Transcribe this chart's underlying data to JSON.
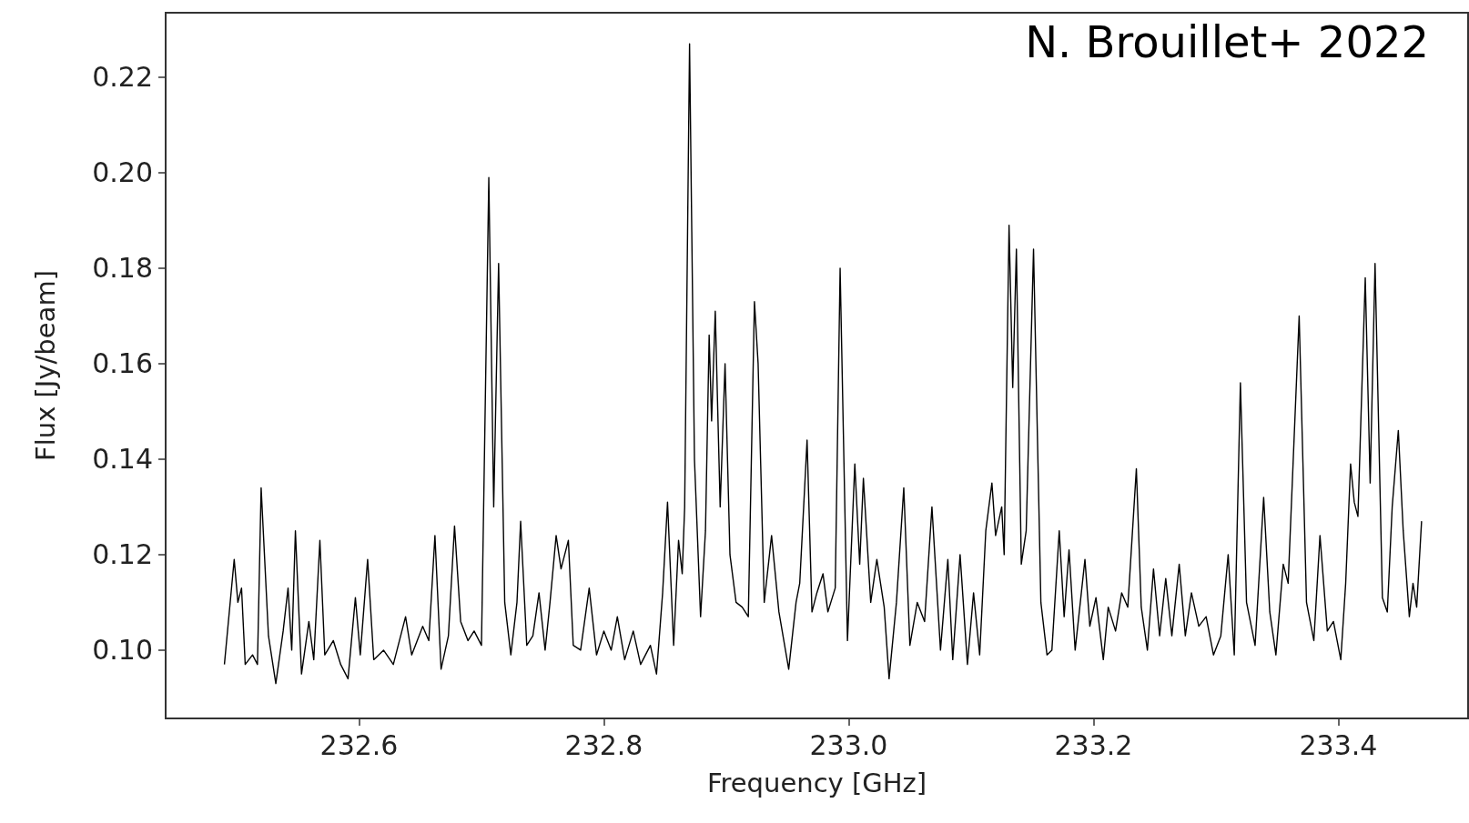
{
  "chart_data": {
    "type": "line",
    "xlabel": "Frequency [GHz]",
    "ylabel": "Flux [Jy/beam]",
    "annotations": [
      "N. Brouillet+ 2022"
    ],
    "xlim": [
      232.442,
      233.506
    ],
    "ylim": [
      0.0857,
      0.2335
    ],
    "xticks": [
      232.6,
      232.8,
      {
        "value": 233,
        "label": "233.0"
      },
      233.2,
      233.4
    ],
    "yticks": [
      {
        "value": 0.1,
        "label": "0.10"
      },
      0.12,
      0.14,
      0.16,
      0.18,
      {
        "value": 0.2,
        "label": "0.20"
      },
      0.22
    ],
    "marker": "none",
    "line_style": "solid",
    "series": [
      {
        "color": "#000000",
        "x": [
          232.49,
          232.498,
          232.501,
          232.504,
          232.507,
          232.513,
          232.517,
          232.52,
          232.526,
          232.532,
          232.538,
          232.542,
          232.545,
          232.548,
          232.553,
          232.559,
          232.563,
          232.568,
          232.572,
          232.579,
          232.585,
          232.591,
          232.597,
          232.601,
          232.607,
          232.612,
          232.62,
          232.628,
          232.638,
          232.643,
          232.652,
          232.657,
          232.662,
          232.667,
          232.673,
          232.678,
          232.683,
          232.689,
          232.694,
          232.7,
          232.706,
          232.71,
          232.714,
          232.719,
          232.724,
          232.729,
          232.732,
          232.737,
          232.742,
          232.747,
          232.752,
          232.756,
          232.761,
          232.765,
          232.771,
          232.775,
          232.781,
          232.788,
          232.794,
          232.8,
          232.806,
          232.811,
          232.817,
          232.824,
          232.83,
          232.838,
          232.843,
          232.848,
          232.852,
          232.857,
          232.861,
          232.864,
          232.866,
          232.87,
          232.874,
          232.879,
          232.883,
          232.886,
          232.888,
          232.891,
          232.895,
          232.899,
          232.903,
          232.908,
          232.913,
          232.918,
          232.923,
          232.926,
          232.931,
          232.937,
          232.943,
          232.951,
          232.957,
          232.96,
          232.966,
          232.97,
          232.974,
          232.979,
          232.983,
          232.989,
          232.993,
          232.999,
          233.005,
          233.009,
          233.012,
          233.018,
          233.023,
          233.029,
          233.033,
          233.039,
          233.045,
          233.05,
          233.056,
          233.062,
          233.068,
          233.075,
          233.081,
          233.085,
          233.091,
          233.097,
          233.102,
          233.107,
          233.112,
          233.117,
          233.12,
          233.125,
          233.127,
          233.131,
          233.134,
          233.137,
          233.141,
          233.145,
          233.151,
          233.157,
          233.162,
          233.166,
          233.172,
          233.176,
          233.18,
          233.185,
          233.193,
          233.197,
          233.202,
          233.208,
          233.212,
          233.218,
          233.223,
          233.228,
          233.235,
          233.239,
          233.244,
          233.249,
          233.254,
          233.259,
          233.264,
          233.27,
          233.275,
          233.28,
          233.286,
          233.292,
          233.298,
          233.304,
          233.31,
          233.315,
          233.32,
          233.325,
          233.332,
          233.339,
          233.344,
          233.349,
          233.355,
          233.359,
          233.368,
          233.374,
          233.38,
          233.385,
          233.391,
          233.396,
          233.402,
          233.406,
          233.41,
          233.413,
          233.416,
          233.422,
          233.426,
          233.43,
          233.436,
          233.44,
          233.444,
          233.449,
          233.453,
          233.458,
          233.461,
          233.464,
          233.468
        ],
        "values": [
          0.097,
          0.119,
          0.11,
          0.113,
          0.097,
          0.099,
          0.097,
          0.134,
          0.103,
          0.093,
          0.104,
          0.113,
          0.1,
          0.125,
          0.095,
          0.106,
          0.098,
          0.123,
          0.099,
          0.102,
          0.097,
          0.094,
          0.111,
          0.099,
          0.119,
          0.098,
          0.1,
          0.097,
          0.107,
          0.099,
          0.105,
          0.102,
          0.124,
          0.096,
          0.103,
          0.126,
          0.106,
          0.102,
          0.104,
          0.101,
          0.199,
          0.13,
          0.181,
          0.11,
          0.099,
          0.11,
          0.127,
          0.101,
          0.103,
          0.112,
          0.1,
          0.11,
          0.124,
          0.117,
          0.123,
          0.101,
          0.1,
          0.113,
          0.099,
          0.104,
          0.1,
          0.107,
          0.098,
          0.104,
          0.097,
          0.101,
          0.095,
          0.112,
          0.131,
          0.101,
          0.123,
          0.116,
          0.13,
          0.227,
          0.14,
          0.107,
          0.125,
          0.166,
          0.148,
          0.171,
          0.13,
          0.16,
          0.12,
          0.11,
          0.109,
          0.107,
          0.173,
          0.16,
          0.11,
          0.124,
          0.108,
          0.096,
          0.11,
          0.114,
          0.144,
          0.108,
          0.112,
          0.116,
          0.108,
          0.113,
          0.18,
          0.102,
          0.139,
          0.118,
          0.136,
          0.11,
          0.119,
          0.109,
          0.094,
          0.11,
          0.134,
          0.101,
          0.11,
          0.106,
          0.13,
          0.1,
          0.119,
          0.098,
          0.12,
          0.097,
          0.112,
          0.099,
          0.125,
          0.135,
          0.124,
          0.13,
          0.12,
          0.189,
          0.155,
          0.184,
          0.118,
          0.125,
          0.184,
          0.11,
          0.099,
          0.1,
          0.125,
          0.107,
          0.121,
          0.1,
          0.119,
          0.105,
          0.111,
          0.098,
          0.109,
          0.104,
          0.112,
          0.109,
          0.138,
          0.109,
          0.1,
          0.117,
          0.103,
          0.115,
          0.103,
          0.118,
          0.103,
          0.112,
          0.105,
          0.107,
          0.099,
          0.103,
          0.12,
          0.099,
          0.156,
          0.11,
          0.101,
          0.132,
          0.108,
          0.099,
          0.118,
          0.114,
          0.17,
          0.11,
          0.102,
          0.124,
          0.104,
          0.106,
          0.098,
          0.114,
          0.139,
          0.131,
          0.128,
          0.178,
          0.135,
          0.181,
          0.111,
          0.108,
          0.13,
          0.146,
          0.125,
          0.107,
          0.114,
          0.109,
          0.127
        ]
      }
    ]
  }
}
